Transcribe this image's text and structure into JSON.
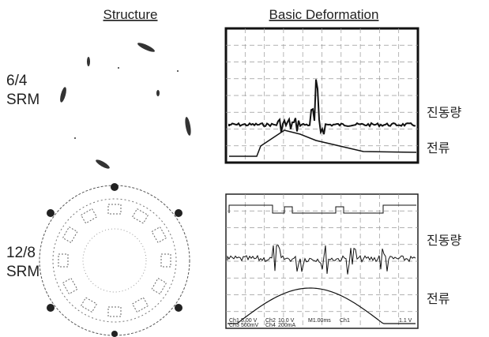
{
  "header": {
    "structure": "Structure",
    "deformation": "Basic Deformation"
  },
  "rows": [
    {
      "label_line1": "6/4",
      "label_line2": "SRM",
      "vibration": "진동량",
      "current": "전류"
    },
    {
      "label_line1": "12/8",
      "label_line2": "SRM",
      "vibration": "진동량",
      "current": "전류",
      "readouts": [
        "Ch1",
        "5.00 V",
        "Ch2",
        "10.0 V",
        "M1.00ms",
        "Ch1",
        "1.1 V",
        "Ch3",
        "500mV",
        "Ch4",
        "200mA"
      ]
    }
  ]
}
